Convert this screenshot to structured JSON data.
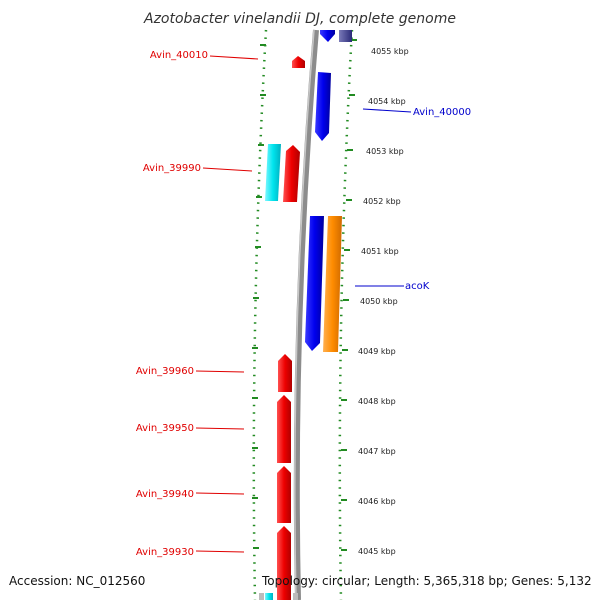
{
  "title": "Azotobacter vinelandii DJ, complete genome",
  "footer": {
    "accession": "Accession: NC_012560",
    "topology": "Topology: circular; Length: 5,365,318 bp; Genes: 5,132"
  },
  "colors": {
    "forward_gene": "#ff0000",
    "reverse_gene": "#0000ee",
    "cyan_feature": "#00e5ee",
    "orange_feature": "#ff8c00",
    "tick": "#228b22",
    "backbone": "#8c8c8c",
    "label_red": "#e00000",
    "label_blue": "#0000cc"
  },
  "scale_labels": [
    "4055 kbp",
    "4054 kbp",
    "4053 kbp",
    "4052 kbp",
    "4051 kbp",
    "4050 kbp",
    "4049 kbp",
    "4048 kbp",
    "4047 kbp",
    "4046 kbp",
    "4045 kbp"
  ],
  "gene_labels": {
    "left": [
      "Avin_40010",
      "Avin_39990",
      "Avin_39960",
      "Avin_39950",
      "Avin_39940",
      "Avin_39930"
    ],
    "right": [
      "Avin_40000",
      "acoK"
    ]
  }
}
